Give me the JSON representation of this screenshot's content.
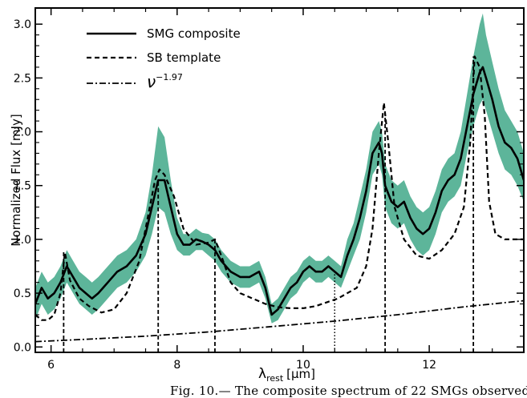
{
  "caption": "Fig. 10.— The composite spectrum of 22 SMGs observed in",
  "colors": {
    "band": "#5db59a",
    "line": "#000000"
  },
  "chart_data": {
    "type": "line",
    "xlabel_main": "λ",
    "xlabel_sub": "rest",
    "xlabel_unit": "[μm]",
    "ylabel": "Normalized Flux [mJy]",
    "xlim": [
      5.75,
      13.5
    ],
    "ylim": [
      -0.05,
      3.15
    ],
    "xticks": [
      6,
      8,
      10,
      12
    ],
    "xtick_labels": [
      "6",
      "8",
      "10",
      "12"
    ],
    "yticks": [
      0.0,
      0.5,
      1.0,
      1.5,
      2.0,
      2.5,
      3.0
    ],
    "ytick_labels": [
      "0.0",
      "0.5",
      "1.0",
      "1.5",
      "2.0",
      "2.5",
      "3.0"
    ],
    "legend_position": "top-left",
    "series": [
      {
        "name": "SMG composite",
        "style": "solid",
        "x": [
          5.75,
          5.85,
          5.95,
          6.05,
          6.15,
          6.25,
          6.35,
          6.45,
          6.55,
          6.65,
          6.75,
          6.9,
          7.05,
          7.2,
          7.35,
          7.5,
          7.6,
          7.7,
          7.8,
          7.9,
          8.0,
          8.1,
          8.2,
          8.3,
          8.4,
          8.5,
          8.6,
          8.7,
          8.85,
          9.0,
          9.15,
          9.3,
          9.4,
          9.5,
          9.6,
          9.7,
          9.8,
          9.9,
          10.0,
          10.1,
          10.2,
          10.3,
          10.4,
          10.5,
          10.6,
          10.7,
          10.8,
          10.9,
          11.0,
          11.1,
          11.2,
          11.25,
          11.3,
          11.4,
          11.5,
          11.6,
          11.7,
          11.8,
          11.9,
          12.0,
          12.1,
          12.2,
          12.3,
          12.4,
          12.5,
          12.6,
          12.7,
          12.8,
          12.85,
          12.9,
          13.0,
          13.1,
          13.2,
          13.3,
          13.4,
          13.5
        ],
        "y": [
          0.4,
          0.55,
          0.45,
          0.5,
          0.6,
          0.75,
          0.65,
          0.55,
          0.5,
          0.45,
          0.5,
          0.6,
          0.7,
          0.75,
          0.85,
          1.05,
          1.3,
          1.55,
          1.55,
          1.3,
          1.05,
          0.95,
          0.95,
          1.0,
          0.98,
          0.95,
          0.9,
          0.8,
          0.7,
          0.65,
          0.65,
          0.7,
          0.55,
          0.3,
          0.35,
          0.45,
          0.55,
          0.6,
          0.7,
          0.75,
          0.7,
          0.7,
          0.75,
          0.7,
          0.65,
          0.85,
          1.0,
          1.2,
          1.45,
          1.8,
          1.9,
          1.8,
          1.5,
          1.35,
          1.3,
          1.35,
          1.2,
          1.1,
          1.05,
          1.1,
          1.25,
          1.45,
          1.55,
          1.6,
          1.75,
          2.05,
          2.35,
          2.55,
          2.6,
          2.5,
          2.3,
          2.05,
          1.9,
          1.85,
          1.75,
          1.55
        ]
      },
      {
        "name": "SB template",
        "style": "dashed",
        "x": [
          5.75,
          5.85,
          5.95,
          6.05,
          6.15,
          6.22,
          6.3,
          6.45,
          6.6,
          6.8,
          7.0,
          7.2,
          7.4,
          7.55,
          7.65,
          7.72,
          7.8,
          7.95,
          8.1,
          8.3,
          8.5,
          8.6,
          8.7,
          8.85,
          9.0,
          9.2,
          9.4,
          9.6,
          9.8,
          10.0,
          10.2,
          10.4,
          10.55,
          10.7,
          10.85,
          11.0,
          11.1,
          11.2,
          11.28,
          11.35,
          11.45,
          11.6,
          11.8,
          12.0,
          12.2,
          12.4,
          12.55,
          12.65,
          12.72,
          12.8,
          12.88,
          12.95,
          13.05,
          13.2,
          13.35,
          13.5
        ],
        "y": [
          0.3,
          0.25,
          0.25,
          0.3,
          0.5,
          0.88,
          0.62,
          0.45,
          0.38,
          0.32,
          0.35,
          0.5,
          0.8,
          1.25,
          1.55,
          1.65,
          1.6,
          1.4,
          1.1,
          0.95,
          0.97,
          1.0,
          0.85,
          0.6,
          0.5,
          0.45,
          0.4,
          0.37,
          0.36,
          0.36,
          0.38,
          0.42,
          0.45,
          0.5,
          0.55,
          0.75,
          1.1,
          1.8,
          2.27,
          1.9,
          1.3,
          1.0,
          0.85,
          0.82,
          0.9,
          1.05,
          1.3,
          1.9,
          2.7,
          2.6,
          2.15,
          1.35,
          1.05,
          1.0,
          1.0,
          1.0
        ]
      },
      {
        "name": "ν",
        "name_sup": "−1.97",
        "style": "dashdot",
        "x": [
          5.75,
          6.5,
          7.5,
          8.5,
          9.5,
          10.5,
          11.5,
          12.5,
          13.5
        ],
        "y": [
          0.05,
          0.07,
          0.1,
          0.14,
          0.19,
          0.24,
          0.3,
          0.37,
          0.43
        ]
      }
    ],
    "uncertainty_band": {
      "x": [
        5.75,
        5.85,
        5.95,
        6.05,
        6.15,
        6.25,
        6.35,
        6.45,
        6.55,
        6.65,
        6.75,
        6.9,
        7.05,
        7.2,
        7.35,
        7.5,
        7.6,
        7.7,
        7.8,
        7.9,
        8.0,
        8.1,
        8.2,
        8.3,
        8.4,
        8.5,
        8.6,
        8.7,
        8.85,
        9.0,
        9.15,
        9.3,
        9.4,
        9.5,
        9.6,
        9.7,
        9.8,
        9.9,
        10.0,
        10.1,
        10.2,
        10.3,
        10.4,
        10.5,
        10.6,
        10.7,
        10.8,
        10.9,
        11.0,
        11.1,
        11.2,
        11.25,
        11.3,
        11.4,
        11.5,
        11.6,
        11.7,
        11.8,
        11.9,
        12.0,
        12.1,
        12.2,
        12.3,
        12.4,
        12.5,
        12.6,
        12.7,
        12.8,
        12.85,
        12.9,
        13.0,
        13.1,
        13.2,
        13.3,
        13.4,
        13.5
      ],
      "lower": [
        0.25,
        0.4,
        0.3,
        0.35,
        0.45,
        0.6,
        0.5,
        0.4,
        0.35,
        0.3,
        0.35,
        0.45,
        0.55,
        0.6,
        0.7,
        0.85,
        1.05,
        1.3,
        1.25,
        1.05,
        0.9,
        0.85,
        0.85,
        0.9,
        0.9,
        0.85,
        0.8,
        0.7,
        0.6,
        0.55,
        0.55,
        0.6,
        0.45,
        0.22,
        0.25,
        0.35,
        0.45,
        0.5,
        0.6,
        0.65,
        0.6,
        0.6,
        0.65,
        0.6,
        0.55,
        0.7,
        0.85,
        1.0,
        1.25,
        1.6,
        1.7,
        1.6,
        1.3,
        1.15,
        1.1,
        1.15,
        1.0,
        0.9,
        0.85,
        0.9,
        1.05,
        1.25,
        1.35,
        1.4,
        1.5,
        1.8,
        2.05,
        2.25,
        2.3,
        2.2,
        2.0,
        1.8,
        1.65,
        1.6,
        1.5,
        1.35
      ],
      "upper": [
        0.55,
        0.7,
        0.6,
        0.65,
        0.75,
        0.9,
        0.8,
        0.7,
        0.65,
        0.6,
        0.65,
        0.75,
        0.85,
        0.9,
        1.0,
        1.25,
        1.6,
        2.05,
        1.95,
        1.55,
        1.2,
        1.05,
        1.05,
        1.1,
        1.06,
        1.05,
        1.0,
        0.9,
        0.8,
        0.75,
        0.75,
        0.8,
        0.65,
        0.4,
        0.45,
        0.55,
        0.65,
        0.7,
        0.8,
        0.85,
        0.8,
        0.8,
        0.85,
        0.8,
        0.75,
        1.0,
        1.15,
        1.4,
        1.65,
        2.0,
        2.1,
        2.0,
        1.7,
        1.55,
        1.5,
        1.55,
        1.4,
        1.3,
        1.25,
        1.3,
        1.45,
        1.65,
        1.75,
        1.8,
        2.0,
        2.35,
        2.7,
        3.0,
        3.1,
        2.9,
        2.65,
        2.4,
        2.2,
        2.1,
        2.0,
        1.8
      ]
    },
    "line_markers": [
      {
        "x": 6.2,
        "top": 0.9,
        "style": "dashed"
      },
      {
        "x": 7.7,
        "top": 1.55,
        "style": "dashed"
      },
      {
        "x": 8.6,
        "top": 1.0,
        "style": "dashed"
      },
      {
        "x": 10.5,
        "top": 0.7,
        "style": "dotted"
      },
      {
        "x": 11.3,
        "top": 2.2,
        "style": "dashed"
      },
      {
        "x": 12.7,
        "top": 2.7,
        "style": "dashed"
      }
    ]
  }
}
